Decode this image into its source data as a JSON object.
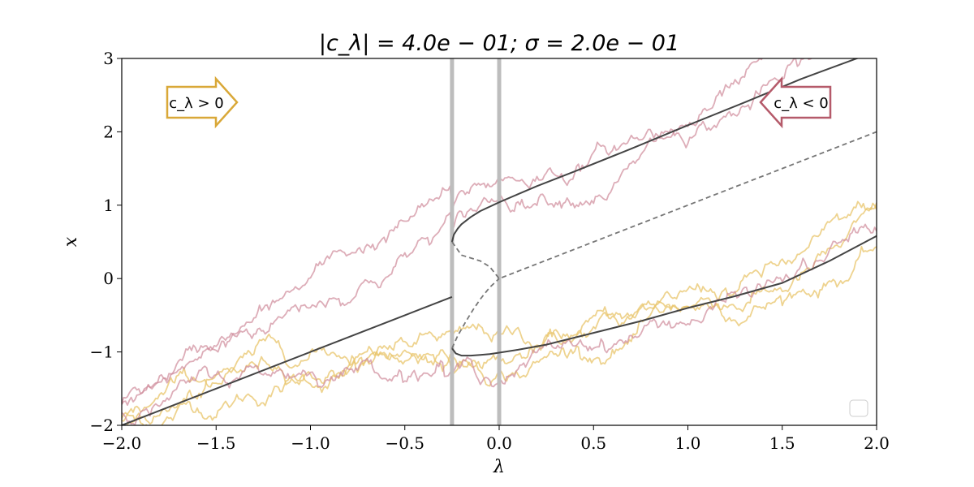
{
  "chart_data": {
    "type": "line",
    "title": "|c_λ| = 4.0e − 01; σ = 2.0e − 01",
    "xlabel": "λ",
    "ylabel": "x",
    "xlim": [
      -2.0,
      2.0
    ],
    "ylim": [
      -2,
      3
    ],
    "xticks": [
      -2.0,
      -1.5,
      -1.0,
      -0.5,
      0.0,
      0.5,
      1.0,
      1.5,
      2.0
    ],
    "xtick_labels": [
      "−2.0",
      "−1.5",
      "−1.0",
      "−0.5",
      "0.0",
      "0.5",
      "1.0",
      "1.5",
      "2.0"
    ],
    "yticks": [
      -2,
      -1,
      0,
      1,
      2,
      3
    ],
    "ytick_labels": [
      "−2",
      "−1",
      "0",
      "1",
      "2",
      "3"
    ],
    "grid": false,
    "legend": {
      "placement": "bottom-right",
      "entries": []
    },
    "vertical_lines": [
      {
        "x": -0.25,
        "color": "#bdbdbd"
      },
      {
        "x": 0.0,
        "color": "#bdbdbd"
      }
    ],
    "annotations": [
      {
        "text": "c_λ > 0",
        "direction": "right",
        "color": "#d9a838",
        "position": "top-left"
      },
      {
        "text": "c_λ < 0",
        "direction": "left",
        "color": "#b55a6a",
        "position": "top-right"
      }
    ],
    "series": [
      {
        "style": "solid",
        "color": "#444444",
        "x": [
          -2.0,
          -1.5,
          -1.0,
          -0.5,
          -0.25,
          -0.2,
          -0.15,
          -0.1,
          -0.05,
          0.0,
          0.05,
          0.1,
          0.25,
          0.5,
          1.0,
          1.5,
          2.0
        ],
        "y": [
          -2.0,
          -1.5,
          -1.0,
          -0.5,
          -0.25,
          -0.2,
          -0.15,
          -0.1,
          -0.05,
          0.0,
          0.05,
          0.1,
          0.25,
          0.5,
          1.0,
          1.5,
          2.0
        ],
        "hidden_mask_after": -0.25
      },
      {
        "style": "solid",
        "color": "#444444",
        "x": [
          -0.25,
          -0.24,
          -0.22,
          -0.2,
          -0.15,
          -0.1,
          -0.05,
          0.0,
          0.1,
          0.2,
          0.4,
          0.7,
          1.0,
          1.3,
          1.6
        ],
        "y": [
          0.5,
          0.6,
          0.68,
          0.74,
          0.84,
          0.92,
          0.98,
          1.04,
          1.15,
          1.26,
          1.46,
          1.77,
          2.09,
          2.4,
          2.72
        ]
      },
      {
        "style": "solid",
        "color": "#444444",
        "x": [
          -0.25,
          -0.23,
          -0.2,
          -0.15,
          -0.1,
          -0.05,
          0.0,
          0.1,
          0.25,
          0.5,
          0.75,
          1.0,
          1.25,
          1.5,
          1.75,
          2.0
        ],
        "y": [
          -0.95,
          -1.02,
          -1.05,
          -1.05,
          -1.04,
          -1.03,
          -1.01,
          -0.97,
          -0.9,
          -0.74,
          -0.58,
          -0.4,
          -0.24,
          -0.06,
          0.24,
          0.58
        ]
      },
      {
        "style": "dashed",
        "color": "#777777",
        "x": [
          -0.25,
          -0.2,
          -0.15,
          -0.1,
          -0.05,
          0.0,
          0.5,
          1.0,
          1.5,
          2.0
        ],
        "y": [
          0.5,
          0.32,
          0.28,
          0.24,
          0.16,
          0.0,
          0.5,
          1.0,
          1.5,
          2.0
        ]
      },
      {
        "style": "dashed",
        "color": "#777777",
        "x": [
          -0.25,
          -0.22,
          -0.18,
          -0.14,
          -0.1,
          -0.05,
          0.0
        ],
        "y": [
          -0.95,
          -0.78,
          -0.6,
          -0.43,
          -0.28,
          -0.12,
          0.0
        ]
      }
    ],
    "noisy_trajectories": {
      "count_per_group": 3,
      "positive": {
        "color": "#e8c46a",
        "start_y": -2.0,
        "end_y": 0.58
      },
      "negative": {
        "color": "#cf8a9a",
        "start_y": -1.75,
        "end_y_upper": 3.0,
        "end_y_lower": 0.58
      }
    }
  }
}
